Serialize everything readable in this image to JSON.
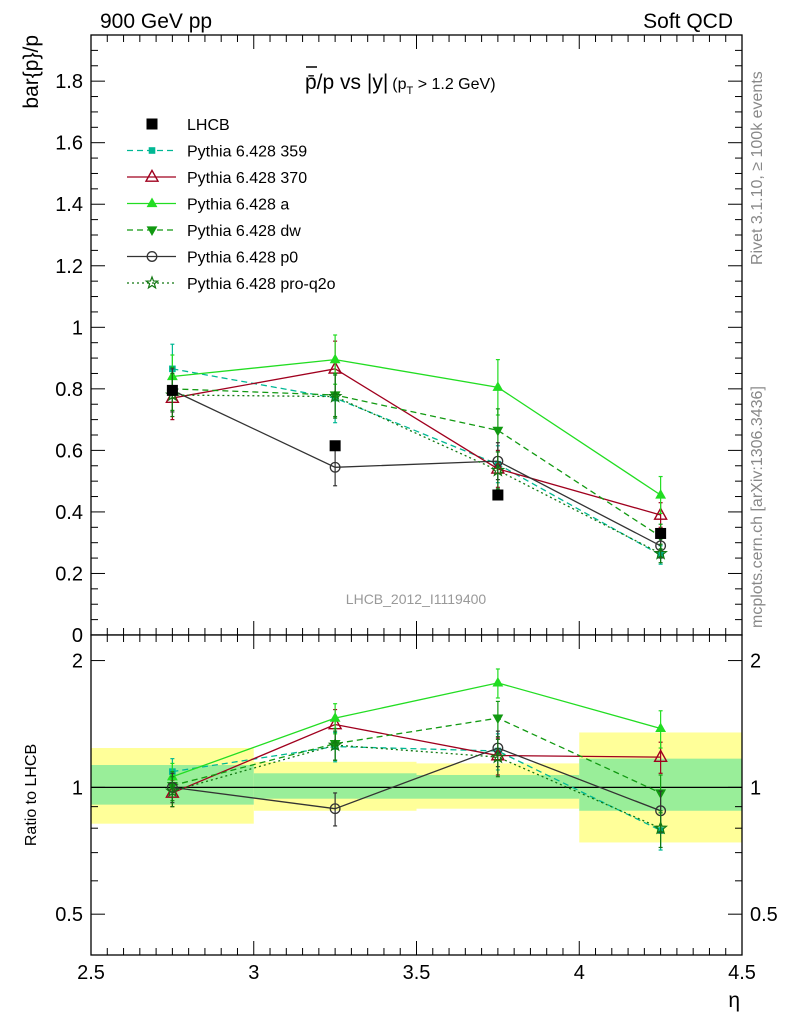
{
  "header": {
    "left": "900 GeV pp",
    "right": "Soft QCD"
  },
  "side_labels": {
    "rivet": "Rivet 3.1.10, ≥ 100k events",
    "mcplots": "mcplots.cern.ch [arXiv:1306.3436]"
  },
  "chart_data": [
    {
      "type": "scatter",
      "title": "p̄/p vs |y| (pT > 1.2 GeV)",
      "title_main": "p̄/p vs |y|",
      "title_sub": "(p",
      "title_subscript": "T",
      "title_suffix": " > 1.2 GeV)",
      "ylabel": "bar{p}/p",
      "xlabel": "η",
      "watermark": "LHCB_2012_I1119400",
      "xlim": [
        2.5,
        4.5
      ],
      "ylim": [
        0,
        1.95
      ],
      "x_ticks": [
        "2.5",
        "3",
        "3.5",
        "4",
        "4.5"
      ],
      "y_ticks": [
        {
          "v": 0,
          "label": "0"
        },
        {
          "v": 0.2,
          "label": "0.2"
        },
        {
          "v": 0.4,
          "label": "0.4"
        },
        {
          "v": 0.6,
          "label": "0.6"
        },
        {
          "v": 0.8,
          "label": "0.8"
        },
        {
          "v": 1,
          "label": "1"
        },
        {
          "v": 1.2,
          "label": "1.2"
        },
        {
          "v": 1.4,
          "label": "1.4"
        },
        {
          "v": 1.6,
          "label": "1.6"
        },
        {
          "v": 1.8,
          "label": "1.8"
        }
      ],
      "legend_position": "top-left",
      "x": [
        2.75,
        3.25,
        3.75,
        4.25
      ],
      "data": {
        "name": "LHCB",
        "values": [
          0.795,
          0.615,
          0.455,
          0.33
        ],
        "xerr": [
          0.25,
          0.25,
          0.25,
          0.25
        ]
      },
      "series": [
        {
          "name": "Pythia 6.428 359",
          "color": "#00b894",
          "dash": "6,4",
          "marker": "square-small",
          "values": [
            0.865,
            0.77,
            0.555,
            0.26
          ],
          "errors": [
            0.08,
            0.08,
            0.06,
            0.03
          ]
        },
        {
          "name": "Pythia 6.428 370",
          "color": "#a0001e",
          "dash": "",
          "marker": "triangle-open",
          "values": [
            0.77,
            0.865,
            0.54,
            0.39
          ],
          "errors": [
            0.07,
            0.09,
            0.06,
            0.04
          ]
        },
        {
          "name": "Pythia 6.428 a",
          "color": "#22dd22",
          "dash": "",
          "marker": "triangle-filled",
          "values": [
            0.84,
            0.895,
            0.805,
            0.455
          ],
          "errors": [
            0.07,
            0.08,
            0.09,
            0.06
          ]
        },
        {
          "name": "Pythia 6.428 dw",
          "color": "#119911",
          "dash": "6,4",
          "marker": "triangle-down",
          "values": [
            0.8,
            0.78,
            0.665,
            0.32
          ],
          "errors": [
            0.07,
            0.07,
            0.07,
            0.04
          ]
        },
        {
          "name": "Pythia 6.428 p0",
          "color": "#333333",
          "dash": "",
          "marker": "circle-open",
          "values": [
            0.795,
            0.545,
            0.565,
            0.29
          ],
          "errors": [
            0.07,
            0.06,
            0.06,
            0.04
          ]
        },
        {
          "name": "Pythia 6.428 pro-q2o",
          "color": "#117711",
          "dash": "2,3",
          "marker": "star",
          "values": [
            0.78,
            0.775,
            0.535,
            0.265
          ],
          "errors": [
            0.07,
            0.07,
            0.06,
            0.03
          ]
        }
      ]
    },
    {
      "type": "scatter",
      "ylabel": "Ratio to LHCB",
      "log_y": true,
      "ylim": [
        0.4,
        2.3
      ],
      "y_ticks": [
        {
          "v": 0.5,
          "label": "0.5"
        },
        {
          "v": 1,
          "label": "1"
        },
        {
          "v": 2,
          "label": "2"
        }
      ],
      "bands": [
        {
          "x0": 2.5,
          "x1": 3.0,
          "inner": [
            0.91,
            1.13
          ],
          "outer": [
            0.82,
            1.24
          ]
        },
        {
          "x0": 3.0,
          "x1": 3.5,
          "inner": [
            0.94,
            1.08
          ],
          "outer": [
            0.88,
            1.15
          ]
        },
        {
          "x0": 3.5,
          "x1": 4.0,
          "inner": [
            0.94,
            1.07
          ],
          "outer": [
            0.89,
            1.14
          ]
        },
        {
          "x0": 4.0,
          "x1": 4.5,
          "inner": [
            0.88,
            1.17
          ],
          "outer": [
            0.74,
            1.35
          ]
        }
      ],
      "series": [
        {
          "name": "Pythia 6.428 359",
          "values": [
            1.09,
            1.25,
            1.22,
            0.79
          ],
          "errors": [
            0.08,
            0.1,
            0.12,
            0.08
          ]
        },
        {
          "name": "Pythia 6.428 370",
          "values": [
            0.97,
            1.41,
            1.19,
            1.18
          ],
          "errors": [
            0.07,
            0.12,
            0.12,
            0.1
          ]
        },
        {
          "name": "Pythia 6.428 a",
          "values": [
            1.06,
            1.46,
            1.77,
            1.38
          ],
          "errors": [
            0.08,
            0.12,
            0.14,
            0.14
          ]
        },
        {
          "name": "Pythia 6.428 dw",
          "values": [
            1.01,
            1.27,
            1.46,
            0.97
          ],
          "errors": [
            0.08,
            0.11,
            0.14,
            0.1
          ]
        },
        {
          "name": "Pythia 6.428 p0",
          "values": [
            1.0,
            0.89,
            1.24,
            0.88
          ],
          "errors": [
            0.08,
            0.08,
            0.12,
            0.1
          ]
        },
        {
          "name": "Pythia 6.428 pro-q2o",
          "values": [
            0.98,
            1.26,
            1.18,
            0.8
          ],
          "errors": [
            0.08,
            0.1,
            0.12,
            0.08
          ]
        }
      ]
    }
  ]
}
